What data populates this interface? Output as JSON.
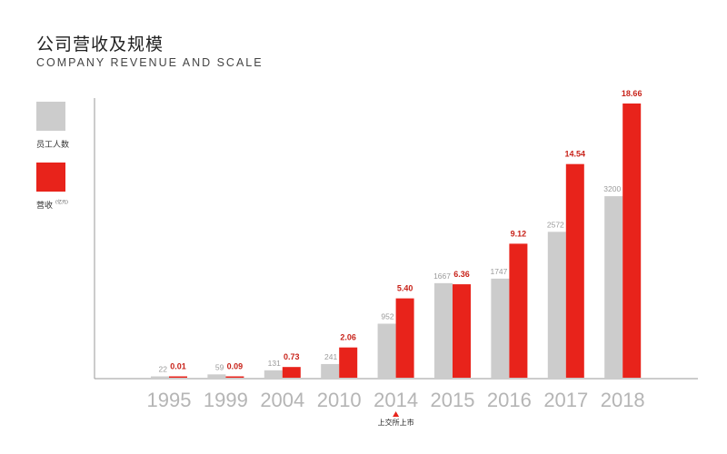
{
  "title": "公司营收及规模",
  "subtitle": "COMPANY REVENUE AND SCALE",
  "legend": {
    "employees_label": "员工人数",
    "revenue_label": "营收",
    "revenue_unit": "(亿元)"
  },
  "annotation": {
    "label": "上交所上市",
    "category": "2014"
  },
  "colors": {
    "employees": "#cccccc",
    "revenue": "#e8231b",
    "axis": "#9a9a9a"
  },
  "chart_data": {
    "type": "bar",
    "categories": [
      "1995",
      "1999",
      "2004",
      "2010",
      "2014",
      "2015",
      "2016",
      "2017",
      "2018"
    ],
    "series": [
      {
        "name": "员工人数",
        "values": [
          22,
          59,
          131,
          241,
          952,
          1667,
          1747,
          2572,
          3200
        ],
        "labels": [
          "22",
          "59",
          "131",
          "241",
          "952",
          "1667",
          "1747",
          "2572",
          "3200"
        ]
      },
      {
        "name": "营收",
        "values": [
          0.01,
          0.09,
          0.73,
          2.06,
          5.4,
          6.36,
          9.12,
          14.54,
          18.66
        ],
        "labels": [
          "0.01",
          "0.09",
          "0.73",
          "2.06",
          "5.40",
          "6.36",
          "9.12",
          "14.54",
          "18.66"
        ]
      }
    ],
    "title": "公司营收及规模",
    "xlabel": "",
    "ylabel": "",
    "grid": false,
    "legend_position": "left"
  }
}
